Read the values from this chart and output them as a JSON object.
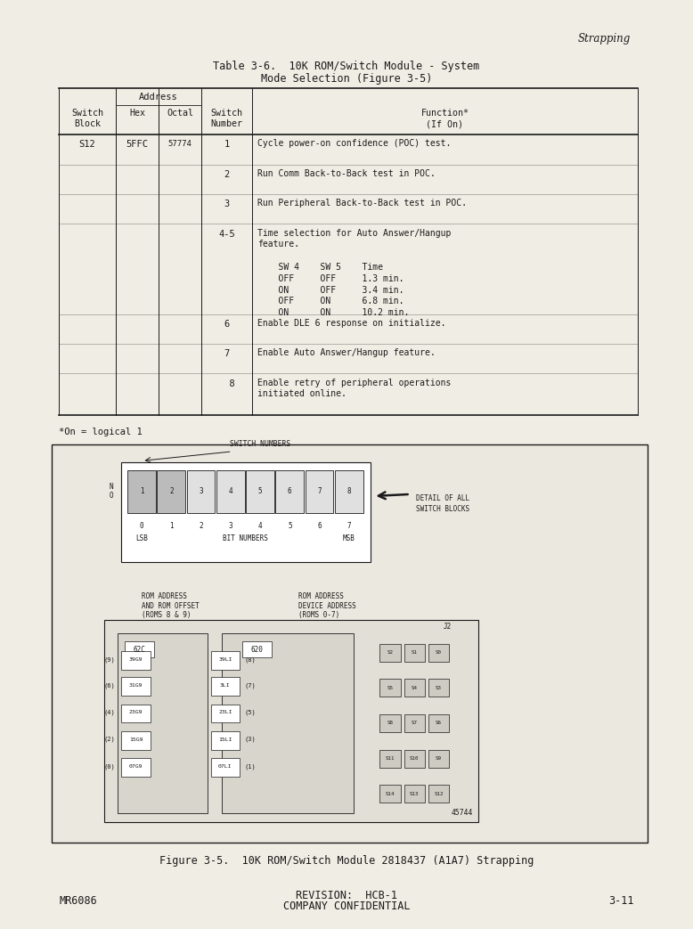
{
  "bg_color": "#f0ede4",
  "page_header_right": "Strapping",
  "table_title_line1": "Table 3-6.  10K ROM/Switch Module - System",
  "table_title_line2": "Mode Selection (Figure 3-5)",
  "footnote": "*On = logical 1",
  "diagram_caption": "Figure 3-5.  10K ROM/Switch Module 2818437 (A1A7) Strapping",
  "footer_left": "MR6086",
  "footer_center_line1": "REVISION:  HCB-1",
  "footer_center_line2": "COMPANY CONFIDENTIAL",
  "footer_right": "3-11",
  "text_color": "#1a1a1a",
  "table_rows": [
    {
      "sw_block": "S12",
      "hex": "5FFC",
      "octal": "57774",
      "sw_num": "1",
      "func": "Cycle power-on confidence (POC) test."
    },
    {
      "sw_block": "",
      "hex": "",
      "octal": "",
      "sw_num": "2",
      "func": "Run Comm Back-to-Back test in POC."
    },
    {
      "sw_block": "",
      "hex": "",
      "octal": "",
      "sw_num": "3",
      "func": "Run Peripheral Back-to-Back test in POC."
    },
    {
      "sw_block": "",
      "hex": "",
      "octal": "",
      "sw_num": "4-5",
      "func": "Time selection for Auto Answer/Hangup\nfeature.\n\n    SW 4    SW 5    Time\n    OFF     OFF     1.3 min.\n    ON      OFF     3.4 min.\n    OFF     ON      6.8 min.\n    ON      ON      10.2 min."
    },
    {
      "sw_block": "",
      "hex": "",
      "octal": "",
      "sw_num": "6",
      "func": "Enable DLE 6 response on initialize."
    },
    {
      "sw_block": "",
      "hex": "",
      "octal": "",
      "sw_num": "7",
      "func": "Enable Auto Answer/Hangup feature."
    },
    {
      "sw_block": "",
      "hex": "",
      "octal": "",
      "sw_num": "  8",
      "func": "Enable retry of peripheral operations\ninitiated online."
    }
  ]
}
